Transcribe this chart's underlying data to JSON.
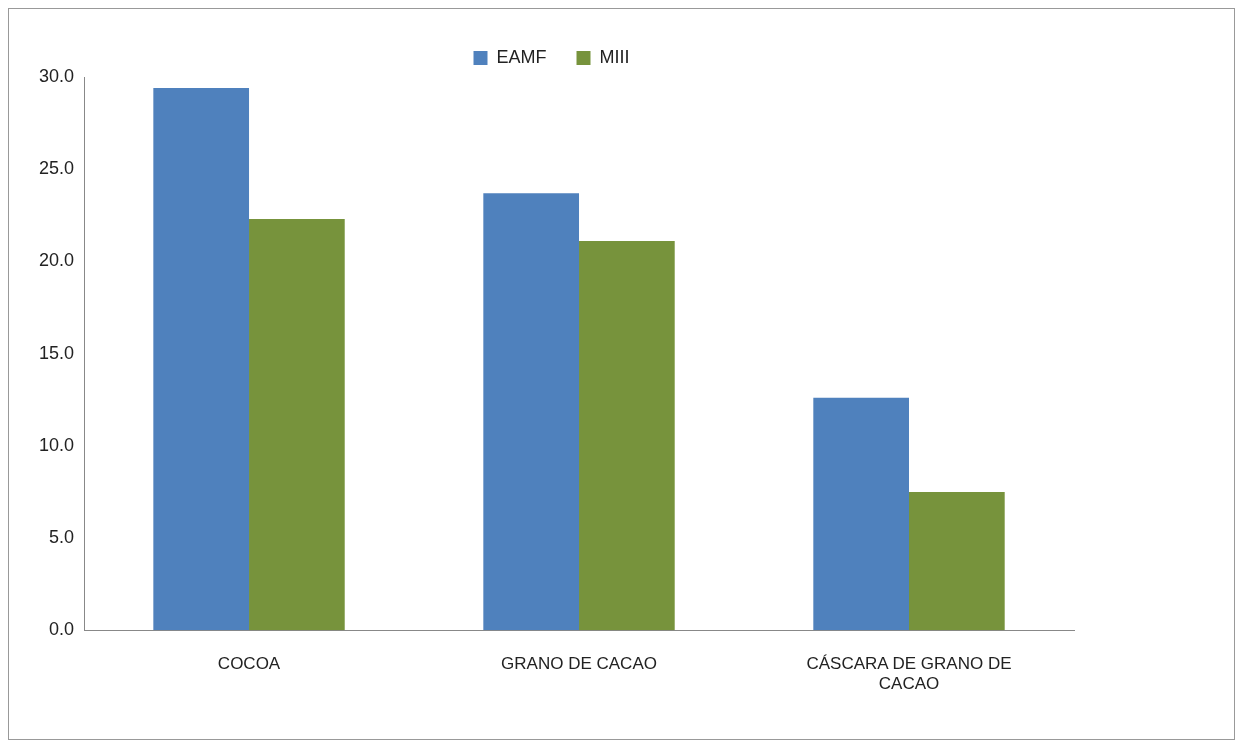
{
  "chart_data": {
    "type": "bar",
    "categories": [
      "COCOA",
      "GRANO DE CACAO",
      "CÁSCARA DE GRANO DE CACAO"
    ],
    "series": [
      {
        "name": "EAMF",
        "color": "#4f81bd",
        "values": [
          29.4,
          23.7,
          12.6
        ]
      },
      {
        "name": "MIII",
        "color": "#77933c",
        "values": [
          22.3,
          21.1,
          7.5
        ]
      }
    ],
    "ylim": [
      0,
      30
    ],
    "yticks": [
      {
        "value": 0,
        "label": "0.0"
      },
      {
        "value": 5,
        "label": "5.0"
      },
      {
        "value": 10,
        "label": "10.0"
      },
      {
        "value": 15,
        "label": "15.0"
      },
      {
        "value": 20,
        "label": "20.0"
      },
      {
        "value": 25,
        "label": "25.0"
      },
      {
        "value": 30,
        "label": "30.0"
      }
    ],
    "grid": false,
    "legend": "top"
  }
}
